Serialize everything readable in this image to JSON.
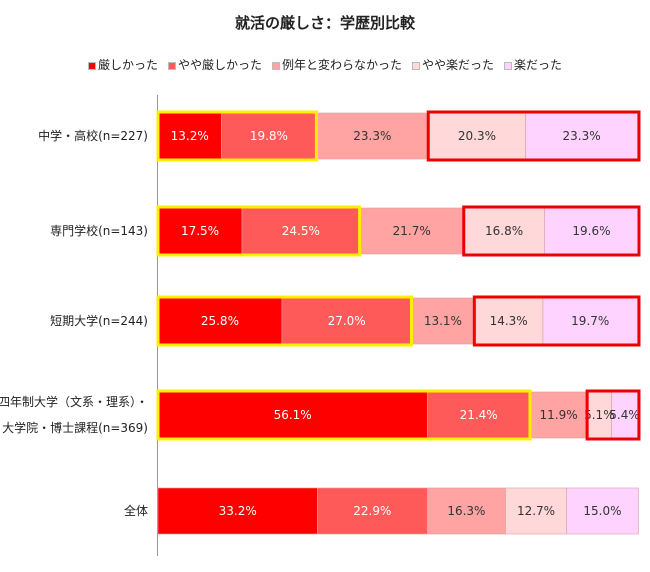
{
  "chart_data": {
    "type": "bar",
    "orientation": "horizontal",
    "stacked": "percent",
    "title": "就活の厳しさ：学歴別比較",
    "legend_position": "top",
    "categories": [
      "中学・高校(n=227)",
      "専門学校(n=143)",
      "短期大学(n=244)",
      "四年制大学（文系・理系）・大学院・博士課程(n=369)",
      "全体"
    ],
    "category_lines": [
      [
        "中学・高校(n=227)"
      ],
      [
        "専門学校(n=143)"
      ],
      [
        "短期大学(n=244)"
      ],
      [
        "四年制大学（文系・理系）・",
        "大学院・博士課程(n=369)"
      ],
      [
        "全体"
      ]
    ],
    "series": [
      {
        "name": "厳しかった",
        "color": "#ff0000",
        "values": [
          13.2,
          17.5,
          25.8,
          56.1,
          33.2
        ]
      },
      {
        "name": "やや厳しかった",
        "color": "#ff5a5a",
        "values": [
          19.8,
          24.5,
          27.0,
          21.4,
          22.9
        ]
      },
      {
        "name": "例年と変わらなかった",
        "color": "#ffa3a3",
        "values": [
          23.3,
          21.7,
          13.1,
          11.9,
          16.3
        ]
      },
      {
        "name": "やや楽だった",
        "color": "#ffd9d9",
        "values": [
          20.3,
          16.8,
          14.3,
          5.1,
          12.7
        ]
      },
      {
        "name": "楽だった",
        "color": "#ffd3ff",
        "values": [
          23.3,
          19.6,
          19.7,
          5.4,
          15.0
        ]
      }
    ],
    "value_suffix": "%",
    "label_colors": [
      "#ffffff",
      "#ffffff",
      "#333333",
      "#333333",
      "#333333"
    ],
    "highlight_colors": {
      "strict": "#ffee00",
      "easy": "#ee0000"
    },
    "xlim": [
      0,
      100
    ]
  }
}
